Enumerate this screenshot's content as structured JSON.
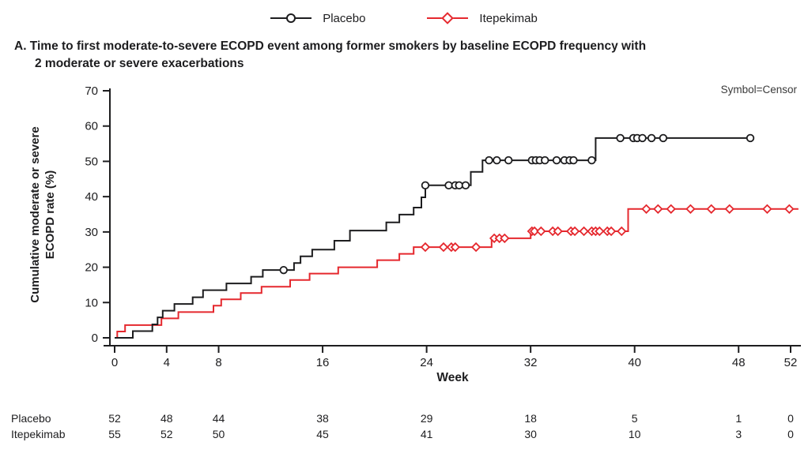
{
  "legend": {
    "items": [
      {
        "label": "Placebo",
        "marker": "circle",
        "color": "#1d1d1f"
      },
      {
        "label": "Itepekimab",
        "marker": "diamond",
        "color": "#e5282e"
      }
    ]
  },
  "title": {
    "line1": "A. Time to first moderate-to-severe ECOPD event among former smokers by baseline ECOPD frequency with",
    "line2": "2 moderate or severe exacerbations"
  },
  "annotation": "Symbol=Censor",
  "chart_data": {
    "type": "line",
    "subtype": "kaplan-meier-step",
    "title": "A. Time to first moderate-to-severe ECOPD event among former smokers by baseline ECOPD frequency with 2 moderate or severe exacerbations",
    "xlabel": "Week",
    "ylabel_line1": "Cumulative moderate or severe",
    "ylabel_line2": "ECOPD rate (%)",
    "xlim": [
      0,
      52
    ],
    "ylim": [
      0,
      70
    ],
    "xticks": [
      0,
      4,
      8,
      16,
      24,
      32,
      40,
      48,
      52
    ],
    "yticks": [
      0,
      10,
      20,
      30,
      40,
      50,
      60,
      70
    ],
    "grid": false,
    "legend_position": "top-center",
    "censor_note": "Symbol=Censor",
    "series": [
      {
        "name": "Placebo",
        "color": "#1d1d1f",
        "marker": "circle",
        "n": 52,
        "end_week": 48.9,
        "steps": [
          [
            1.4,
            1.9
          ],
          [
            2.9,
            3.8
          ],
          [
            3.3,
            5.8
          ],
          [
            3.7,
            7.7
          ],
          [
            4.6,
            9.6
          ],
          [
            6.0,
            11.5
          ],
          [
            6.8,
            13.5
          ],
          [
            8.6,
            15.4
          ],
          [
            10.5,
            17.3
          ],
          [
            11.4,
            19.2
          ],
          [
            13.8,
            21.2
          ],
          [
            14.3,
            23.1
          ],
          [
            15.2,
            25.0
          ],
          [
            16.9,
            27.5
          ],
          [
            18.1,
            30.4
          ],
          [
            20.9,
            32.7
          ],
          [
            21.9,
            34.9
          ],
          [
            23.0,
            36.9
          ],
          [
            23.6,
            39.8
          ],
          [
            23.9,
            43.2
          ],
          [
            27.4,
            47.0
          ],
          [
            28.3,
            50.3
          ],
          [
            37.0,
            56.6
          ]
        ],
        "censors": [
          [
            13.0,
            19.2
          ],
          [
            23.9,
            43.2
          ],
          [
            25.7,
            43.2
          ],
          [
            26.2,
            43.2
          ],
          [
            26.5,
            43.2
          ],
          [
            27.0,
            43.2
          ],
          [
            28.8,
            50.3
          ],
          [
            29.4,
            50.3
          ],
          [
            30.3,
            50.3
          ],
          [
            32.1,
            50.3
          ],
          [
            32.4,
            50.3
          ],
          [
            32.7,
            50.3
          ],
          [
            33.1,
            50.3
          ],
          [
            34.0,
            50.3
          ],
          [
            34.6,
            50.3
          ],
          [
            35.0,
            50.3
          ],
          [
            35.3,
            50.3
          ],
          [
            36.7,
            50.3
          ],
          [
            38.9,
            56.6
          ],
          [
            39.9,
            56.6
          ],
          [
            40.2,
            56.6
          ],
          [
            40.6,
            56.6
          ],
          [
            41.3,
            56.6
          ],
          [
            42.2,
            56.6
          ],
          [
            48.9,
            56.6
          ]
        ]
      },
      {
        "name": "Itepekimab",
        "color": "#e5282e",
        "marker": "diamond",
        "n": 55,
        "end_week": 52.6,
        "steps": [
          [
            0.2,
            1.8
          ],
          [
            0.8,
            3.6
          ],
          [
            3.6,
            5.5
          ],
          [
            4.9,
            7.3
          ],
          [
            7.6,
            9.1
          ],
          [
            8.2,
            10.9
          ],
          [
            9.7,
            12.7
          ],
          [
            11.3,
            14.5
          ],
          [
            13.5,
            16.4
          ],
          [
            15.0,
            18.2
          ],
          [
            17.2,
            20.0
          ],
          [
            20.2,
            22.0
          ],
          [
            21.9,
            23.8
          ],
          [
            23.0,
            25.7
          ],
          [
            29.0,
            28.2
          ],
          [
            32.0,
            30.2
          ],
          [
            39.5,
            36.5
          ]
        ],
        "censors": [
          [
            23.9,
            25.7
          ],
          [
            25.3,
            25.7
          ],
          [
            25.9,
            25.7
          ],
          [
            26.2,
            25.7
          ],
          [
            27.8,
            25.7
          ],
          [
            29.2,
            28.2
          ],
          [
            29.6,
            28.2
          ],
          [
            30.0,
            28.2
          ],
          [
            32.1,
            30.2
          ],
          [
            32.3,
            30.2
          ],
          [
            32.8,
            30.2
          ],
          [
            33.7,
            30.2
          ],
          [
            34.1,
            30.2
          ],
          [
            35.1,
            30.2
          ],
          [
            35.4,
            30.2
          ],
          [
            36.1,
            30.2
          ],
          [
            36.7,
            30.2
          ],
          [
            37.0,
            30.2
          ],
          [
            37.3,
            30.2
          ],
          [
            37.9,
            30.2
          ],
          [
            38.2,
            30.2
          ],
          [
            39.0,
            30.2
          ],
          [
            40.9,
            36.5
          ],
          [
            41.8,
            36.5
          ],
          [
            42.8,
            36.5
          ],
          [
            44.3,
            36.5
          ],
          [
            45.9,
            36.5
          ],
          [
            47.3,
            36.5
          ],
          [
            50.2,
            36.5
          ],
          [
            51.9,
            36.5
          ]
        ]
      }
    ]
  },
  "risk_table": {
    "weeks": [
      0,
      4,
      8,
      16,
      24,
      32,
      40,
      48,
      52
    ],
    "rows": [
      {
        "label": "Placebo",
        "values": [
          "52",
          "48",
          "44",
          "38",
          "29",
          "18",
          "5",
          "1",
          "0"
        ]
      },
      {
        "label": "Itepekimab",
        "values": [
          "55",
          "52",
          "50",
          "45",
          "41",
          "30",
          "10",
          "3",
          "0"
        ]
      }
    ]
  }
}
